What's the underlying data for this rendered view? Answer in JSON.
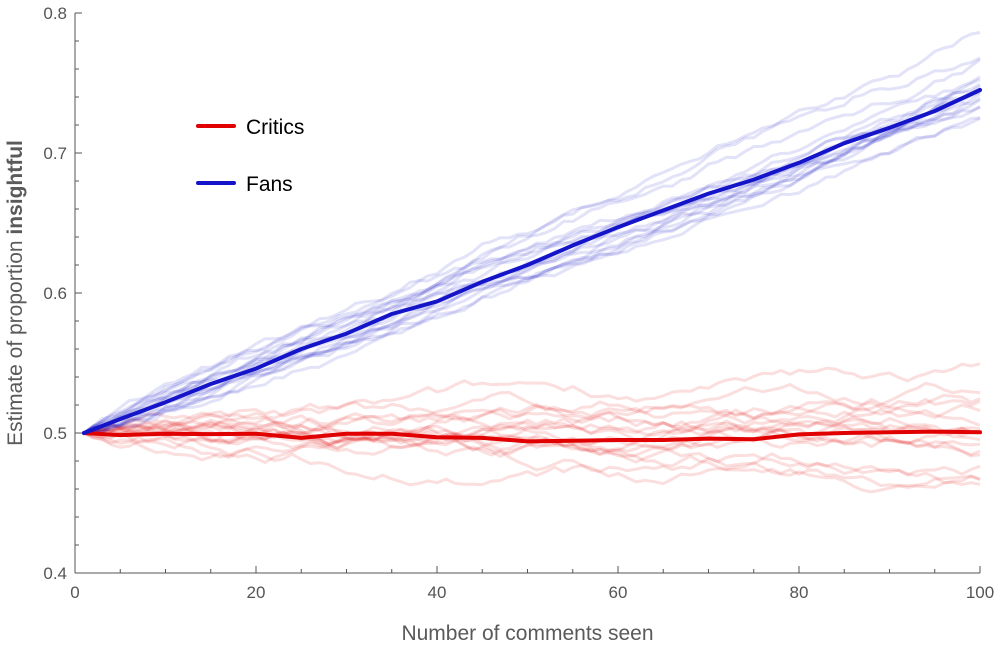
{
  "chart_data": {
    "type": "line",
    "title": "",
    "xlabel": "Number of comments seen",
    "ylabel_prefix": "Estimate of proportion ",
    "ylabel_emphasis": "insightful",
    "xlim": [
      0,
      100
    ],
    "ylim": [
      0.4,
      0.8
    ],
    "x_ticks": [
      0,
      20,
      40,
      60,
      80,
      100
    ],
    "x_tick_labels": [
      "0",
      "20",
      "40",
      "60",
      "80",
      "100"
    ],
    "y_ticks": [
      0.4,
      0.5,
      0.6,
      0.7,
      0.8
    ],
    "y_tick_labels": [
      "0.4",
      "0.5",
      "0.6",
      "0.7",
      "0.8"
    ],
    "grid": false,
    "legend_placement": "upper-left",
    "series": [
      {
        "name": "Critics",
        "color": "#e00000",
        "x": [
          1,
          5,
          10,
          15,
          20,
          25,
          30,
          35,
          40,
          45,
          50,
          55,
          60,
          65,
          70,
          75,
          80,
          85,
          90,
          95,
          100
        ],
        "values": [
          0.5,
          0.4985,
          0.4995,
          0.4992,
          0.4995,
          0.4965,
          0.4995,
          0.4995,
          0.497,
          0.4965,
          0.494,
          0.4945,
          0.495,
          0.495,
          0.496,
          0.4955,
          0.499,
          0.5,
          0.5005,
          0.501,
          0.5005
        ]
      },
      {
        "name": "Fans",
        "color": "#1414c8",
        "x": [
          1,
          5,
          10,
          15,
          20,
          25,
          30,
          35,
          40,
          45,
          50,
          55,
          60,
          65,
          70,
          75,
          80,
          85,
          90,
          95,
          100
        ],
        "values": [
          0.5,
          0.51,
          0.522,
          0.535,
          0.546,
          0.56,
          0.571,
          0.585,
          0.594,
          0.608,
          0.62,
          0.634,
          0.647,
          0.659,
          0.671,
          0.681,
          0.693,
          0.707,
          0.718,
          0.73,
          0.745
        ]
      }
    ]
  },
  "legend": {
    "items": [
      {
        "label": "Critics",
        "color": "#e00000"
      },
      {
        "label": "Fans",
        "color": "#1414c8"
      }
    ]
  }
}
